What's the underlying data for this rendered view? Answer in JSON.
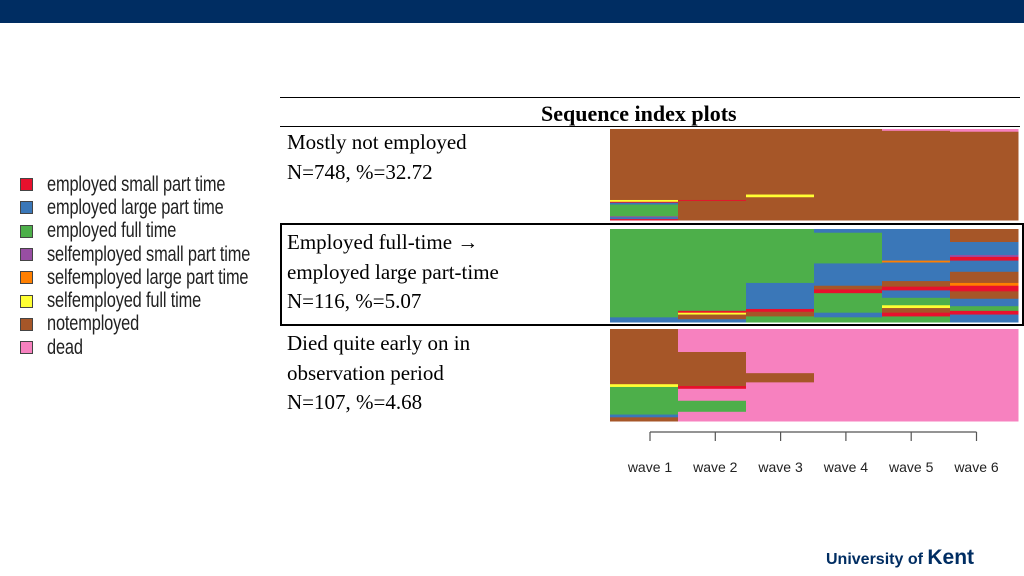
{
  "slide": {
    "title": "Sequence index plots",
    "logo_prefix": "University of",
    "logo_name": "Kent"
  },
  "legend": [
    {
      "label": "employed small part time",
      "color": "#e8112d"
    },
    {
      "label": "employed large part time",
      "color": "#3a77b8"
    },
    {
      "label": "employed full time",
      "color": "#4daf4a"
    },
    {
      "label": "selfemployed small part time",
      "color": "#984ea3"
    },
    {
      "label": "selfemployed large part time",
      "color": "#ff7f00"
    },
    {
      "label": "selfemployed full time",
      "color": "#ffff33"
    },
    {
      "label": "notemployed",
      "color": "#a65628"
    },
    {
      "label": "dead",
      "color": "#f781bf"
    }
  ],
  "clusters": [
    {
      "line1": "Mostly not employed",
      "line2": "",
      "stats": "N=748, %=32.72"
    },
    {
      "line1": "Employed full-time →",
      "line2": "employed large part-time",
      "stats": "N=116, %=5.07"
    },
    {
      "line1": "Died quite early on in",
      "line2": "observation period",
      "stats": "N=107, %=4.68"
    }
  ],
  "chart_data": {
    "type": "sequence index plot",
    "x_ticks": [
      "wave 1",
      "wave 2",
      "wave 3",
      "wave 4",
      "wave 5",
      "wave 6"
    ],
    "states": [
      "employed small part time",
      "employed large part time",
      "employed full time",
      "selfemployed small part time",
      "selfemployed large part time",
      "selfemployed full time",
      "notemployed",
      "dead"
    ],
    "panels": [
      {
        "name": "Mostly not employed",
        "n": 748,
        "percent": 32.72,
        "waves": [
          [
            [
              "notemployed",
              0.78
            ],
            [
              "selfemployed full time",
              0.02
            ],
            [
              "employed small part time",
              0.01
            ],
            [
              "employed large part time",
              0.02
            ],
            [
              "employed full time",
              0.13
            ],
            [
              "selfemployed small part time",
              0.01
            ],
            [
              "employed large part time",
              0.02
            ],
            [
              "employed small part time",
              0.01
            ]
          ],
          [
            [
              "notemployed",
              0.78
            ],
            [
              "employed small part time",
              0.01
            ],
            [
              "notemployed",
              0.21
            ]
          ],
          [
            [
              "notemployed",
              0.72
            ],
            [
              "selfemployed full time",
              0.03
            ],
            [
              "notemployed",
              0.25
            ]
          ],
          [
            [
              "notemployed",
              1.0
            ]
          ],
          [
            [
              "dead",
              0.02
            ],
            [
              "notemployed",
              0.98
            ]
          ],
          [
            [
              "dead",
              0.03
            ],
            [
              "notemployed",
              0.97
            ]
          ]
        ]
      },
      {
        "name": "Employed full-time to employed large part-time",
        "n": 116,
        "percent": 5.07,
        "waves": [
          [
            [
              "employed full time",
              0.95
            ],
            [
              "employed large part time",
              0.05
            ]
          ],
          [
            [
              "employed full time",
              0.88
            ],
            [
              "employed small part time",
              0.02
            ],
            [
              "selfemployed full time",
              0.02
            ],
            [
              "notemployed",
              0.05
            ],
            [
              "employed large part time",
              0.03
            ]
          ],
          [
            [
              "employed full time",
              0.58
            ],
            [
              "employed large part time",
              0.28
            ],
            [
              "employed small part time",
              0.03
            ],
            [
              "notemployed",
              0.05
            ],
            [
              "employed full time",
              0.06
            ]
          ],
          [
            [
              "employed large part time",
              0.04
            ],
            [
              "employed full time",
              0.33
            ],
            [
              "employed large part time",
              0.24
            ],
            [
              "notemployed",
              0.04
            ],
            [
              "employed small part time",
              0.04
            ],
            [
              "employed full time",
              0.21
            ],
            [
              "employed large part time",
              0.05
            ],
            [
              "employed full time",
              0.05
            ]
          ],
          [
            [
              "employed large part time",
              0.34
            ],
            [
              "selfemployed large part time",
              0.02
            ],
            [
              "employed large part time",
              0.2
            ],
            [
              "notemployed",
              0.06
            ],
            [
              "employed small part time",
              0.04
            ],
            [
              "employed large part time",
              0.08
            ],
            [
              "employed full time",
              0.08
            ],
            [
              "selfemployed full time",
              0.03
            ],
            [
              "notemployed",
              0.05
            ],
            [
              "employed small part time",
              0.04
            ],
            [
              "employed full time",
              0.06
            ]
          ],
          [
            [
              "notemployed",
              0.14
            ],
            [
              "employed large part time",
              0.14
            ],
            [
              "selfemployed small part time",
              0.02
            ],
            [
              "employed small part time",
              0.04
            ],
            [
              "employed large part time",
              0.12
            ],
            [
              "notemployed",
              0.12
            ],
            [
              "selfemployed large part time",
              0.03
            ],
            [
              "employed small part time",
              0.06
            ],
            [
              "notemployed",
              0.08
            ],
            [
              "employed large part time",
              0.08
            ],
            [
              "employed full time",
              0.05
            ],
            [
              "employed small part time",
              0.04
            ],
            [
              "employed large part time",
              0.08
            ]
          ]
        ]
      },
      {
        "name": "Died quite early on in observation period",
        "n": 107,
        "percent": 4.68,
        "waves": [
          [
            [
              "notemployed",
              0.6
            ],
            [
              "selfemployed full time",
              0.03
            ],
            [
              "employed full time",
              0.3
            ],
            [
              "employed large part time",
              0.03
            ],
            [
              "notemployed",
              0.04
            ]
          ],
          [
            [
              "dead",
              0.25
            ],
            [
              "notemployed",
              0.37
            ],
            [
              "employed small part time",
              0.03
            ],
            [
              "dead",
              0.13
            ],
            [
              "employed full time",
              0.12
            ],
            [
              "dead",
              0.1
            ]
          ],
          [
            [
              "dead",
              0.48
            ],
            [
              "notemployed",
              0.1
            ],
            [
              "dead",
              0.42
            ]
          ],
          [
            [
              "dead",
              1.0
            ]
          ],
          [
            [
              "dead",
              1.0
            ]
          ],
          [
            [
              "dead",
              1.0
            ]
          ]
        ]
      }
    ]
  }
}
